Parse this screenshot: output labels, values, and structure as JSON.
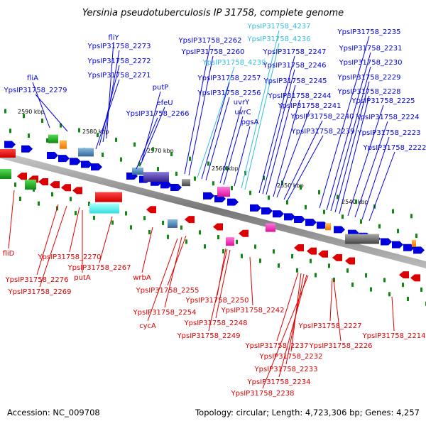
{
  "title": "Yersinia pseudotuberculosis IP 31758, complete genome",
  "footer": {
    "accession": "Accession: NC_009708",
    "summary": "Topology: circular; Length: 4,723,306 bp; Genes: 4,257"
  },
  "colors": {
    "forward": "#0000dd",
    "reverse": "#dd0000",
    "rna": "#33bbdd",
    "backbone": "#999999"
  },
  "ticks": [
    "2590 kbp",
    "2580 kbp",
    "2570 kbp",
    "2560 kbp",
    "2550 kbp",
    "2540 kbp"
  ],
  "top_labels": [
    {
      "text": "fliY",
      "color": "forward"
    },
    {
      "text": "YpsIP31758_2273",
      "color": "forward"
    },
    {
      "text": "YpsIP31758_2272",
      "color": "forward"
    },
    {
      "text": "YpsIP31758_2271",
      "color": "forward"
    },
    {
      "text": "fliA",
      "color": "forward"
    },
    {
      "text": "YpsIP31758_2279",
      "color": "forward"
    },
    {
      "text": "putP",
      "color": "forward"
    },
    {
      "text": "efeU",
      "color": "forward"
    },
    {
      "text": "YpsIP31758_2266",
      "color": "forward"
    },
    {
      "text": "YpsIP31758_2262",
      "color": "forward"
    },
    {
      "text": "YpsIP31758_2260",
      "color": "forward"
    },
    {
      "text": "YpsIP31758_4239",
      "color": "rna"
    },
    {
      "text": "YpsIP31758_2257",
      "color": "forward"
    },
    {
      "text": "YpsIP31758_2256",
      "color": "forward"
    },
    {
      "text": "uvrY",
      "color": "forward"
    },
    {
      "text": "uvrC",
      "color": "forward"
    },
    {
      "text": "pgsA",
      "color": "forward"
    },
    {
      "text": "YpsIP31758_4237",
      "color": "rna"
    },
    {
      "text": "YpsIP31758_4236",
      "color": "rna"
    },
    {
      "text": "YpsIP31758_2247",
      "color": "forward"
    },
    {
      "text": "YpsIP31758_2246",
      "color": "forward"
    },
    {
      "text": "YpsIP31758_2245",
      "color": "forward"
    },
    {
      "text": "YpsIP31758_2244",
      "color": "forward"
    },
    {
      "text": "YpsIP31758_2241",
      "color": "forward"
    },
    {
      "text": "YpsIP31758_2240",
      "color": "forward"
    },
    {
      "text": "YpsIP31758_2239",
      "color": "forward"
    },
    {
      "text": "YpsIP31758_2235",
      "color": "forward"
    },
    {
      "text": "YpsIP31758_2231",
      "color": "forward"
    },
    {
      "text": "YpsIP31758_2230",
      "color": "forward"
    },
    {
      "text": "YpsIP31758_2229",
      "color": "forward"
    },
    {
      "text": "YpsIP31758_2228",
      "color": "forward"
    },
    {
      "text": "YpsIP31758_2225",
      "color": "forward"
    },
    {
      "text": "YpsIP31758_2224",
      "color": "forward"
    },
    {
      "text": "YpsIP31758_2223",
      "color": "forward"
    },
    {
      "text": "YpsIP31758_2222",
      "color": "forward"
    }
  ],
  "bottom_labels": [
    {
      "text": "fliD"
    },
    {
      "text": "YpsIP31758_2270"
    },
    {
      "text": "putA"
    },
    {
      "text": "YpsIP31758_2276"
    },
    {
      "text": "YpsIP31758_2267"
    },
    {
      "text": "YpsIP31758_2269"
    },
    {
      "text": "wrbA"
    },
    {
      "text": "YpsIP31758_2255"
    },
    {
      "text": "YpsIP31758_2254"
    },
    {
      "text": "cycA"
    },
    {
      "text": "YpsIP31758_2250"
    },
    {
      "text": "YpsIP31758_2248"
    },
    {
      "text": "YpsIP31758_2249"
    },
    {
      "text": "YpsIP31758_2242"
    },
    {
      "text": "YpsIP31758_2227"
    },
    {
      "text": "YpsIP31758_2226"
    },
    {
      "text": "YpsIP31758_2214"
    },
    {
      "text": "YpsIP31758_2237"
    },
    {
      "text": "YpsIP31758_2232"
    },
    {
      "text": "YpsIP31758_2233"
    },
    {
      "text": "YpsIP31758_2234"
    },
    {
      "text": "YpsIP31758_2238"
    }
  ]
}
